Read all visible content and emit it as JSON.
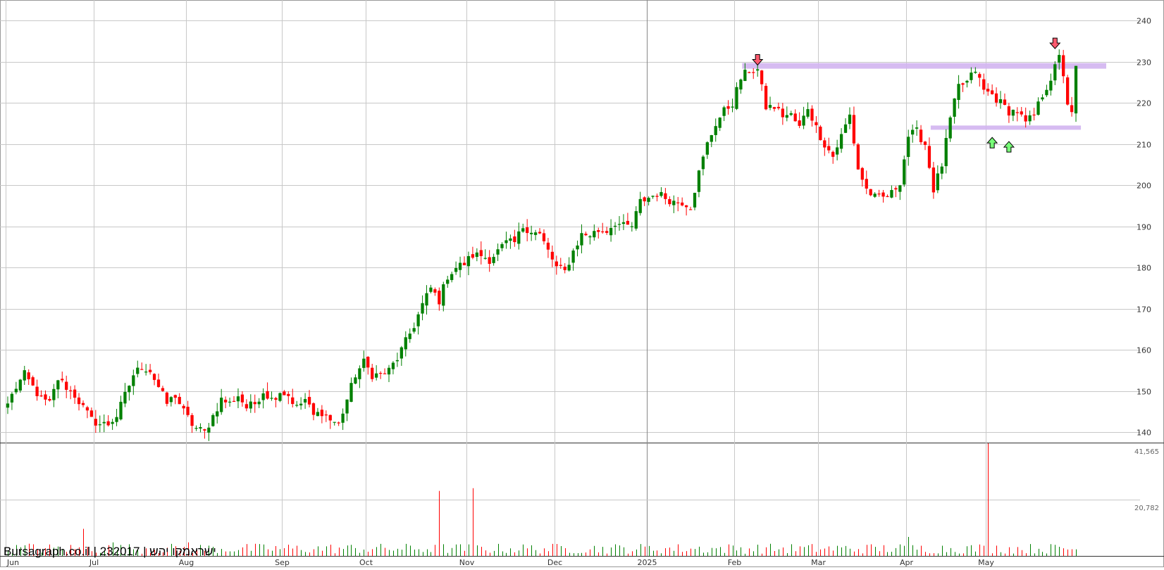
{
  "watermark": "Bursagraph.co.il | 232017 | ישראמקו יהש",
  "colors": {
    "up": "#008000",
    "down": "#ff0000",
    "zone": "#d2b4f0",
    "grid": "#c8c8c8",
    "arrow_down": "#ff5a6e",
    "arrow_up": "#78ff78"
  },
  "chart_data": {
    "type": "candlestick",
    "price_axis": {
      "min": 137.5,
      "max": 245,
      "ticks": [
        140,
        150,
        160,
        170,
        180,
        190,
        200,
        210,
        220,
        230,
        240
      ]
    },
    "volume_axis": {
      "max": 41565,
      "tick_labels": [
        "41,565",
        "20,782"
      ],
      "tick_values": [
        41565,
        20782
      ]
    },
    "month_labels": [
      "Jun",
      "Jul",
      "Aug",
      "Sep",
      "Oct",
      "Nov",
      "Dec",
      "2025",
      "Feb",
      "Mar",
      "Apr",
      "May"
    ],
    "month_start_index": [
      0,
      21,
      43,
      66,
      86,
      110,
      131,
      153,
      174,
      194,
      215,
      234
    ],
    "total_bars": 256,
    "anchors": [
      [
        0,
        147
      ],
      [
        2,
        151
      ],
      [
        4,
        154
      ],
      [
        6,
        151
      ],
      [
        8,
        148
      ],
      [
        10,
        147
      ],
      [
        12,
        153
      ],
      [
        14,
        151
      ],
      [
        16,
        149
      ],
      [
        18,
        146
      ],
      [
        20,
        143
      ],
      [
        22,
        142
      ],
      [
        24,
        142
      ],
      [
        26,
        144
      ],
      [
        28,
        149
      ],
      [
        30,
        154
      ],
      [
        32,
        156
      ],
      [
        34,
        155
      ],
      [
        36,
        151
      ],
      [
        38,
        147
      ],
      [
        40,
        149
      ],
      [
        42,
        145
      ],
      [
        44,
        142
      ],
      [
        45,
        141
      ],
      [
        47,
        140
      ],
      [
        49,
        144
      ],
      [
        51,
        148
      ],
      [
        53,
        147
      ],
      [
        55,
        149
      ],
      [
        57,
        146
      ],
      [
        59,
        147
      ],
      [
        61,
        150
      ],
      [
        63,
        148
      ],
      [
        65,
        150
      ],
      [
        67,
        149
      ],
      [
        69,
        146
      ],
      [
        71,
        148
      ],
      [
        73,
        144
      ],
      [
        75,
        145
      ],
      [
        77,
        143
      ],
      [
        79,
        142
      ],
      [
        81,
        148
      ],
      [
        83,
        154
      ],
      [
        85,
        157
      ],
      [
        87,
        154
      ],
      [
        89,
        154
      ],
      [
        91,
        155
      ],
      [
        93,
        158
      ],
      [
        95,
        162
      ],
      [
        97,
        166
      ],
      [
        99,
        171
      ],
      [
        101,
        175
      ],
      [
        103,
        172
      ],
      [
        105,
        178
      ],
      [
        107,
        180
      ],
      [
        109,
        181
      ],
      [
        111,
        183
      ],
      [
        113,
        183
      ],
      [
        115,
        182
      ],
      [
        117,
        184
      ],
      [
        119,
        186
      ],
      [
        121,
        186
      ],
      [
        123,
        190
      ],
      [
        125,
        189
      ],
      [
        127,
        188
      ],
      [
        129,
        184
      ],
      [
        131,
        180
      ],
      [
        133,
        179
      ],
      [
        135,
        184
      ],
      [
        137,
        188
      ],
      [
        139,
        188
      ],
      [
        141,
        189
      ],
      [
        143,
        189
      ],
      [
        145,
        191
      ],
      [
        147,
        190
      ],
      [
        149,
        190
      ],
      [
        151,
        196
      ],
      [
        153,
        197
      ],
      [
        155,
        198
      ],
      [
        157,
        197
      ],
      [
        159,
        196
      ],
      [
        161,
        196
      ],
      [
        163,
        195
      ],
      [
        165,
        203
      ],
      [
        167,
        210
      ],
      [
        169,
        215
      ],
      [
        171,
        218
      ],
      [
        173,
        220
      ],
      [
        175,
        226
      ],
      [
        177,
        228
      ],
      [
        179,
        228
      ],
      [
        181,
        219
      ],
      [
        183,
        219
      ],
      [
        185,
        217
      ],
      [
        187,
        217
      ],
      [
        189,
        214
      ],
      [
        191,
        219
      ],
      [
        193,
        214
      ],
      [
        195,
        210
      ],
      [
        197,
        207
      ],
      [
        199,
        212
      ],
      [
        201,
        217
      ],
      [
        203,
        204
      ],
      [
        205,
        199
      ],
      [
        207,
        197
      ],
      [
        209,
        197
      ],
      [
        211,
        198
      ],
      [
        213,
        201
      ],
      [
        215,
        212
      ],
      [
        217,
        213
      ],
      [
        219,
        210
      ],
      [
        221,
        199
      ],
      [
        223,
        205
      ],
      [
        225,
        216
      ],
      [
        227,
        224
      ],
      [
        229,
        225
      ],
      [
        231,
        228
      ],
      [
        233,
        223
      ],
      [
        235,
        222
      ],
      [
        237,
        220
      ],
      [
        239,
        218
      ],
      [
        241,
        218
      ],
      [
        243,
        215
      ],
      [
        245,
        217
      ],
      [
        247,
        222
      ],
      [
        249,
        226
      ],
      [
        251,
        231
      ],
      [
        252,
        227
      ],
      [
        253,
        220
      ],
      [
        254,
        217
      ],
      [
        255,
        229
      ]
    ],
    "resistance_zone": {
      "y": 229,
      "from_index": 176,
      "to_index": 256
    },
    "support_zone": {
      "y": 214,
      "from_index": 221,
      "to_index": 255
    },
    "markers": [
      {
        "type": "sell",
        "index": 179,
        "price": 228
      },
      {
        "type": "sell",
        "index": 250,
        "price": 232
      },
      {
        "type": "buy",
        "index": 235,
        "price": 213
      },
      {
        "type": "buy",
        "index": 239,
        "price": 212
      }
    ],
    "volume_spikes": [
      {
        "index": 5,
        "value": 4500
      },
      {
        "index": 18,
        "value": 10000
      },
      {
        "index": 25,
        "value": 5000
      },
      {
        "index": 43,
        "value": 5000
      },
      {
        "index": 103,
        "value": 24000
      },
      {
        "index": 111,
        "value": 25000
      },
      {
        "index": 234,
        "value": 41565
      },
      {
        "index": 215,
        "value": 7000
      }
    ]
  }
}
